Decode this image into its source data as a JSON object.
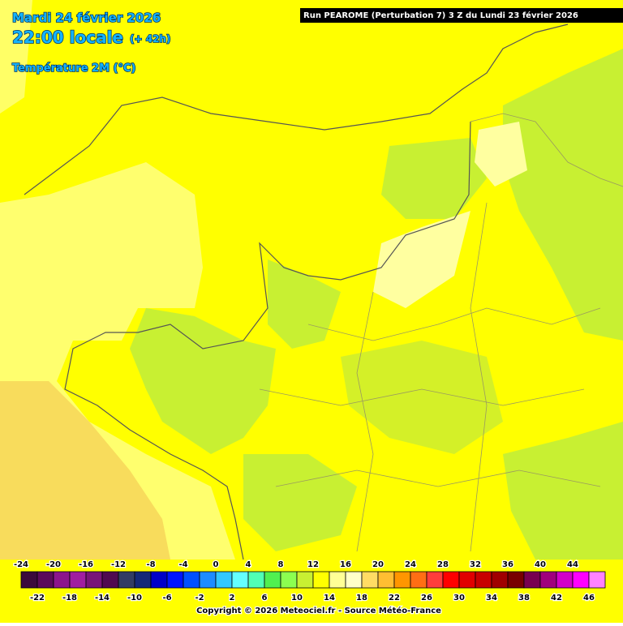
{
  "header": {
    "date": "Mardi 24 février 2026",
    "time": "22:00 locale",
    "offset": "(+ 42h)",
    "variable": "Température 2M (°C)",
    "run": "Run PEAROME (Perturbation 7) 3 Z du Lundi 23 février 2026"
  },
  "legend": {
    "steps": [
      {
        "value": -24,
        "color": "#3c0a3c"
      },
      {
        "value": -22,
        "color": "#5a0a5a"
      },
      {
        "value": -20,
        "color": "#8c148c"
      },
      {
        "value": -18,
        "color": "#a01ea0"
      },
      {
        "value": -16,
        "color": "#781478"
      },
      {
        "value": -14,
        "color": "#500a50"
      },
      {
        "value": -12,
        "color": "#323c64"
      },
      {
        "value": -10,
        "color": "#142878"
      },
      {
        "value": -8,
        "color": "#0000c8"
      },
      {
        "value": -6,
        "color": "#0014ff"
      },
      {
        "value": -4,
        "color": "#0050ff"
      },
      {
        "value": -2,
        "color": "#1e8cff"
      },
      {
        "value": 0,
        "color": "#32c8ff"
      },
      {
        "value": 2,
        "color": "#64ffff"
      },
      {
        "value": 4,
        "color": "#50ffb4"
      },
      {
        "value": 6,
        "color": "#50f050"
      },
      {
        "value": 8,
        "color": "#8cff50"
      },
      {
        "value": 10,
        "color": "#c8f032"
      },
      {
        "value": 12,
        "color": "#ffff00"
      },
      {
        "value": 14,
        "color": "#ffff96"
      },
      {
        "value": 16,
        "color": "#ffffc8"
      },
      {
        "value": 18,
        "color": "#ffdc64"
      },
      {
        "value": 20,
        "color": "#ffbe32"
      },
      {
        "value": 22,
        "color": "#ff9600"
      },
      {
        "value": 24,
        "color": "#ff6e14"
      },
      {
        "value": 26,
        "color": "#ff3c3c"
      },
      {
        "value": 28,
        "color": "#ff0000"
      },
      {
        "value": 30,
        "color": "#e10000"
      },
      {
        "value": 32,
        "color": "#c80000"
      },
      {
        "value": 34,
        "color": "#a00000"
      },
      {
        "value": 36,
        "color": "#780000"
      },
      {
        "value": 38,
        "color": "#780050"
      },
      {
        "value": 40,
        "color": "#a0007d"
      },
      {
        "value": 42,
        "color": "#d200c8"
      },
      {
        "value": 44,
        "color": "#ff00ff"
      },
      {
        "value": 46,
        "color": "#ff82ff"
      }
    ]
  },
  "copyright": "Copyright © 2026 Meteociel.fr - Source Météo-France"
}
